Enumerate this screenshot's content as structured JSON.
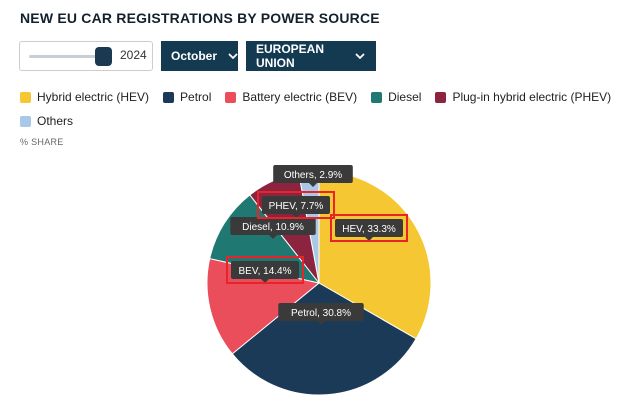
{
  "title": "NEW EU CAR REGISTRATIONS BY POWER SOURCE",
  "controls": {
    "year_value": "2024",
    "month_value": "October",
    "region_value": "EUROPEAN UNION"
  },
  "legend": {
    "items": [
      {
        "label": "Hybrid electric (HEV)",
        "color": "#f5c732"
      },
      {
        "label": "Petrol",
        "color": "#1b3a57"
      },
      {
        "label": "Battery electric (BEV)",
        "color": "#e94e5a"
      },
      {
        "label": "Diesel",
        "color": "#1f7872"
      },
      {
        "label": "Plug-in hybrid electric (PHEV)",
        "color": "#8c2440"
      },
      {
        "label": "Others",
        "color": "#a9c8e8"
      }
    ]
  },
  "unit_label": "% SHARE",
  "chart_data": {
    "type": "pie",
    "unit": "% SHARE",
    "slices": [
      {
        "name": "HEV",
        "value": 33.3,
        "label": "HEV, 33.3%",
        "color": "#f5c732"
      },
      {
        "name": "Petrol",
        "value": 30.8,
        "label": "Petrol, 30.8%",
        "color": "#1b3a57"
      },
      {
        "name": "BEV",
        "value": 14.4,
        "label": "BEV, 14.4%",
        "color": "#e94e5a"
      },
      {
        "name": "Diesel",
        "value": 10.9,
        "label": "Diesel, 10.9%",
        "color": "#1f7872"
      },
      {
        "name": "PHEV",
        "value": 7.7,
        "label": "PHEV, 7.7%",
        "color": "#8c2440"
      },
      {
        "name": "Others",
        "value": 2.9,
        "label": "Others, 2.9%",
        "color": "#a9c8e8"
      }
    ]
  }
}
